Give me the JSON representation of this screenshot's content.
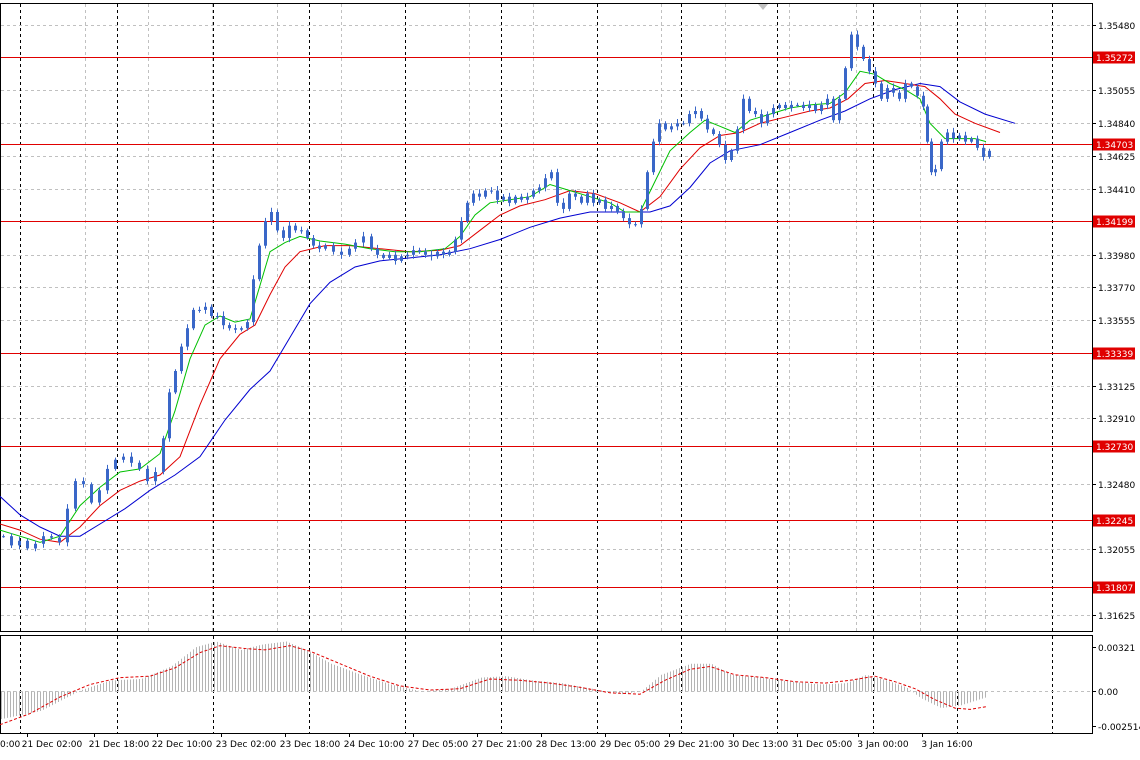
{
  "chart_data": {
    "type": "candlestick",
    "colors": {
      "background": "#ffffff",
      "grid": "#c0c0c0",
      "candle": "#3a67c8",
      "ma_fast": "#00c000",
      "ma_mid": "#e00000",
      "ma_slow": "#0000d0",
      "level_line": "#e00000",
      "level_label_bg": "#e00000",
      "level_label_text": "#ffffff",
      "histogram": "#b4b4b4",
      "signal": "#e00000"
    },
    "price_axis": {
      "ylim": [
        1.3152,
        1.3562
      ],
      "ticks": [
        "1.35480",
        "1.35055",
        "1.34840",
        "1.34625",
        "1.34410",
        "1.33980",
        "1.33770",
        "1.33555",
        "1.33125",
        "1.32910",
        "1.32480",
        "1.32055",
        "1.31625"
      ]
    },
    "levels": [
      "1.35272",
      "1.34703",
      "1.34199",
      "1.33339",
      "1.32730",
      "1.32245",
      "1.31807"
    ],
    "time_labels": [
      "21 Dec 02:00",
      "21 Dec 18:00",
      "22 Dec 10:00",
      "23 Dec 02:00",
      "23 Dec 18:00",
      "24 Dec 10:00",
      "27 Dec 05:00",
      "27 Dec 21:00",
      "28 Dec 13:00",
      "29 Dec 05:00",
      "29 Dec 21:00",
      "30 Dec 13:00",
      "31 Dec 05:00",
      "3 Jan 00:00",
      "3 Jan 16:00"
    ],
    "time_label_partial": "0:00",
    "series_close": [
      [
        0,
        1.3214
      ],
      [
        8,
        1.3208
      ],
      [
        16,
        1.3211
      ],
      [
        24,
        1.3206
      ],
      [
        32,
        1.3209
      ],
      [
        40,
        1.3214
      ],
      [
        48,
        1.3213
      ],
      [
        56,
        1.321
      ],
      [
        64,
        1.3232
      ],
      [
        72,
        1.325
      ],
      [
        80,
        1.3248
      ],
      [
        88,
        1.3236
      ],
      [
        96,
        1.3244
      ],
      [
        104,
        1.3258
      ],
      [
        112,
        1.3264
      ],
      [
        120,
        1.3266
      ],
      [
        128,
        1.3262
      ],
      [
        136,
        1.3258
      ],
      [
        144,
        1.325
      ],
      [
        152,
        1.3256
      ],
      [
        160,
        1.3278
      ],
      [
        166,
        1.3308
      ],
      [
        172,
        1.3322
      ],
      [
        178,
        1.3338
      ],
      [
        184,
        1.335
      ],
      [
        190,
        1.3362
      ],
      [
        196,
        1.3362
      ],
      [
        202,
        1.3364
      ],
      [
        208,
        1.3358
      ],
      [
        214,
        1.3358
      ],
      [
        220,
        1.3352
      ],
      [
        226,
        1.335
      ],
      [
        232,
        1.3349
      ],
      [
        238,
        1.335
      ],
      [
        244,
        1.3354
      ],
      [
        250,
        1.3382
      ],
      [
        256,
        1.3404
      ],
      [
        262,
        1.342
      ],
      [
        268,
        1.3426
      ],
      [
        274,
        1.3414
      ],
      [
        280,
        1.3409
      ],
      [
        286,
        1.3417
      ],
      [
        292,
        1.3414
      ],
      [
        298,
        1.3414
      ],
      [
        304,
        1.3409
      ],
      [
        310,
        1.3404
      ],
      [
        316,
        1.3402
      ],
      [
        322,
        1.3404
      ],
      [
        330,
        1.34
      ],
      [
        338,
        1.3398
      ],
      [
        346,
        1.3402
      ],
      [
        352,
        1.3406
      ],
      [
        360,
        1.341
      ],
      [
        368,
        1.3402
      ],
      [
        374,
        1.3398
      ],
      [
        380,
        1.3396
      ],
      [
        386,
        1.3398
      ],
      [
        392,
        1.3394
      ],
      [
        398,
        1.3397
      ],
      [
        404,
        1.3398
      ],
      [
        410,
        1.3401
      ],
      [
        416,
        1.34
      ],
      [
        422,
        1.3398
      ],
      [
        428,
        1.3397
      ],
      [
        434,
        1.34
      ],
      [
        440,
        1.3398
      ],
      [
        446,
        1.34
      ],
      [
        452,
        1.3408
      ],
      [
        458,
        1.342
      ],
      [
        464,
        1.3432
      ],
      [
        470,
        1.3438
      ],
      [
        476,
        1.3436
      ],
      [
        482,
        1.344
      ],
      [
        488,
        1.344
      ],
      [
        494,
        1.3434
      ],
      [
        500,
        1.3436
      ],
      [
        506,
        1.3432
      ],
      [
        512,
        1.3436
      ],
      [
        518,
        1.3434
      ],
      [
        524,
        1.3436
      ],
      [
        530,
        1.344
      ],
      [
        536,
        1.3442
      ],
      [
        542,
        1.3448
      ],
      [
        548,
        1.3452
      ],
      [
        554,
        1.3432
      ],
      [
        560,
        1.3428
      ],
      [
        566,
        1.3438
      ],
      [
        572,
        1.3436
      ],
      [
        578,
        1.3432
      ],
      [
        584,
        1.3438
      ],
      [
        590,
        1.3432
      ],
      [
        596,
        1.3434
      ],
      [
        602,
        1.3428
      ],
      [
        608,
        1.343
      ],
      [
        614,
        1.3426
      ],
      [
        620,
        1.3422
      ],
      [
        626,
        1.3418
      ],
      [
        632,
        1.3418
      ],
      [
        638,
        1.3428
      ],
      [
        644,
        1.3452
      ],
      [
        650,
        1.3472
      ],
      [
        656,
        1.3484
      ],
      [
        662,
        1.348
      ],
      [
        668,
        1.3482
      ],
      [
        674,
        1.3484
      ],
      [
        680,
        1.3484
      ],
      [
        686,
        1.349
      ],
      [
        692,
        1.3492
      ],
      [
        698,
        1.3487
      ],
      [
        704,
        1.348
      ],
      [
        710,
        1.3477
      ],
      [
        716,
        1.347
      ],
      [
        722,
        1.346
      ],
      [
        728,
        1.3466
      ],
      [
        734,
        1.348
      ],
      [
        740,
        1.35
      ],
      [
        746,
        1.3492
      ],
      [
        752,
        1.349
      ],
      [
        758,
        1.3484
      ],
      [
        764,
        1.349
      ],
      [
        770,
        1.3494
      ],
      [
        776,
        1.3496
      ],
      [
        782,
        1.3494
      ],
      [
        788,
        1.3496
      ],
      [
        794,
        1.3496
      ],
      [
        800,
        1.3494
      ],
      [
        806,
        1.3496
      ],
      [
        812,
        1.3492
      ],
      [
        818,
        1.3496
      ],
      [
        824,
        1.35
      ],
      [
        830,
        1.3486
      ],
      [
        836,
        1.35
      ],
      [
        842,
        1.352
      ],
      [
        848,
        1.3542
      ],
      [
        854,
        1.3534
      ],
      [
        860,
        1.3526
      ],
      [
        866,
        1.3518
      ],
      [
        872,
        1.351
      ],
      [
        878,
        1.35
      ],
      [
        884,
        1.3507
      ],
      [
        890,
        1.3504
      ],
      [
        896,
        1.35
      ],
      [
        902,
        1.351
      ],
      [
        908,
        1.3508
      ],
      [
        914,
        1.3502
      ],
      [
        920,
        1.3495
      ],
      [
        924,
        1.3472
      ],
      [
        928,
        1.3452
      ],
      [
        932,
        1.3454
      ],
      [
        938,
        1.3472
      ],
      [
        944,
        1.3478
      ],
      [
        950,
        1.3474
      ],
      [
        956,
        1.3476
      ],
      [
        962,
        1.3472
      ],
      [
        968,
        1.3474
      ],
      [
        974,
        1.3468
      ],
      [
        980,
        1.3462
      ],
      [
        986,
        1.3466
      ]
    ],
    "ma_fast_points": [
      [
        0,
        1.3218
      ],
      [
        20,
        1.3214
      ],
      [
        40,
        1.321
      ],
      [
        60,
        1.3214
      ],
      [
        80,
        1.3234
      ],
      [
        100,
        1.3246
      ],
      [
        120,
        1.3256
      ],
      [
        140,
        1.3258
      ],
      [
        160,
        1.3268
      ],
      [
        175,
        1.3296
      ],
      [
        190,
        1.333
      ],
      [
        205,
        1.3352
      ],
      [
        220,
        1.3358
      ],
      [
        235,
        1.3354
      ],
      [
        250,
        1.3356
      ],
      [
        260,
        1.3378
      ],
      [
        270,
        1.34
      ],
      [
        285,
        1.3406
      ],
      [
        300,
        1.341
      ],
      [
        320,
        1.3407
      ],
      [
        345,
        1.3405
      ],
      [
        370,
        1.3402
      ],
      [
        395,
        1.34
      ],
      [
        420,
        1.34
      ],
      [
        445,
        1.3402
      ],
      [
        460,
        1.341
      ],
      [
        475,
        1.3424
      ],
      [
        490,
        1.3432
      ],
      [
        510,
        1.3434
      ],
      [
        530,
        1.3436
      ],
      [
        550,
        1.3444
      ],
      [
        570,
        1.344
      ],
      [
        590,
        1.3436
      ],
      [
        610,
        1.3432
      ],
      [
        625,
        1.3426
      ],
      [
        640,
        1.3426
      ],
      [
        655,
        1.3446
      ],
      [
        670,
        1.3466
      ],
      [
        690,
        1.3478
      ],
      [
        705,
        1.3486
      ],
      [
        720,
        1.3482
      ],
      [
        735,
        1.3478
      ],
      [
        750,
        1.3486
      ],
      [
        770,
        1.349
      ],
      [
        790,
        1.3494
      ],
      [
        810,
        1.3496
      ],
      [
        830,
        1.3497
      ],
      [
        845,
        1.3504
      ],
      [
        860,
        1.3518
      ],
      [
        875,
        1.3516
      ],
      [
        890,
        1.351
      ],
      [
        905,
        1.3506
      ],
      [
        920,
        1.35
      ],
      [
        930,
        1.3484
      ],
      [
        945,
        1.3474
      ],
      [
        960,
        1.3474
      ],
      [
        975,
        1.3474
      ],
      [
        986,
        1.3472
      ]
    ],
    "ma_mid_points": [
      [
        0,
        1.3222
      ],
      [
        20,
        1.3218
      ],
      [
        40,
        1.3212
      ],
      [
        60,
        1.321
      ],
      [
        80,
        1.322
      ],
      [
        100,
        1.3234
      ],
      [
        120,
        1.3244
      ],
      [
        140,
        1.325
      ],
      [
        160,
        1.3254
      ],
      [
        180,
        1.3266
      ],
      [
        200,
        1.33
      ],
      [
        220,
        1.333
      ],
      [
        240,
        1.3346
      ],
      [
        255,
        1.3352
      ],
      [
        270,
        1.3372
      ],
      [
        285,
        1.339
      ],
      [
        300,
        1.34
      ],
      [
        325,
        1.3404
      ],
      [
        350,
        1.3404
      ],
      [
        380,
        1.3402
      ],
      [
        410,
        1.34
      ],
      [
        440,
        1.3401
      ],
      [
        460,
        1.3404
      ],
      [
        480,
        1.3414
      ],
      [
        500,
        1.3424
      ],
      [
        520,
        1.343
      ],
      [
        545,
        1.3434
      ],
      [
        570,
        1.344
      ],
      [
        595,
        1.3438
      ],
      [
        620,
        1.3432
      ],
      [
        640,
        1.3426
      ],
      [
        660,
        1.3436
      ],
      [
        680,
        1.3454
      ],
      [
        700,
        1.3468
      ],
      [
        720,
        1.3476
      ],
      [
        740,
        1.3478
      ],
      [
        760,
        1.3484
      ],
      [
        785,
        1.3488
      ],
      [
        810,
        1.3492
      ],
      [
        830,
        1.3494
      ],
      [
        848,
        1.35
      ],
      [
        865,
        1.351
      ],
      [
        885,
        1.3512
      ],
      [
        905,
        1.351
      ],
      [
        925,
        1.3508
      ],
      [
        940,
        1.35
      ],
      [
        955,
        1.349
      ],
      [
        975,
        1.3484
      ],
      [
        1000,
        1.3478
      ]
    ],
    "ma_slow_points": [
      [
        0,
        1.324
      ],
      [
        20,
        1.3228
      ],
      [
        40,
        1.322
      ],
      [
        60,
        1.3214
      ],
      [
        80,
        1.3214
      ],
      [
        100,
        1.3222
      ],
      [
        125,
        1.3232
      ],
      [
        150,
        1.3244
      ],
      [
        175,
        1.3254
      ],
      [
        200,
        1.3266
      ],
      [
        225,
        1.329
      ],
      [
        250,
        1.331
      ],
      [
        270,
        1.3322
      ],
      [
        290,
        1.3344
      ],
      [
        310,
        1.3366
      ],
      [
        330,
        1.338
      ],
      [
        355,
        1.339
      ],
      [
        380,
        1.3394
      ],
      [
        410,
        1.3396
      ],
      [
        440,
        1.3398
      ],
      [
        470,
        1.3402
      ],
      [
        500,
        1.3408
      ],
      [
        530,
        1.3416
      ],
      [
        560,
        1.3422
      ],
      [
        590,
        1.3426
      ],
      [
        620,
        1.3426
      ],
      [
        650,
        1.3426
      ],
      [
        670,
        1.343
      ],
      [
        690,
        1.3442
      ],
      [
        710,
        1.3458
      ],
      [
        730,
        1.3466
      ],
      [
        760,
        1.347
      ],
      [
        790,
        1.3478
      ],
      [
        820,
        1.3486
      ],
      [
        845,
        1.3492
      ],
      [
        870,
        1.35
      ],
      [
        895,
        1.3506
      ],
      [
        920,
        1.351
      ],
      [
        940,
        1.3508
      ],
      [
        960,
        1.3498
      ],
      [
        985,
        1.349
      ],
      [
        1015,
        1.3484
      ]
    ],
    "oscillator": {
      "ylim": [
        -0.003,
        0.004
      ],
      "ticks": [
        "0.00321",
        "0.00",
        "-0.002514"
      ],
      "histogram": [
        [
          0,
          -0.002
        ],
        [
          40,
          -0.0014
        ],
        [
          80,
          0.0001
        ],
        [
          110,
          0.0008
        ],
        [
          140,
          0.0009
        ],
        [
          170,
          0.0018
        ],
        [
          195,
          0.0032
        ],
        [
          215,
          0.0036
        ],
        [
          240,
          0.003
        ],
        [
          262,
          0.0034
        ],
        [
          285,
          0.0036
        ],
        [
          305,
          0.003
        ],
        [
          330,
          0.002
        ],
        [
          360,
          0.0012
        ],
        [
          390,
          0.0005
        ],
        [
          420,
          0.0
        ],
        [
          450,
          0.0002
        ],
        [
          480,
          0.001
        ],
        [
          505,
          0.0011
        ],
        [
          530,
          0.0008
        ],
        [
          560,
          0.0006
        ],
        [
          590,
          0.0002
        ],
        [
          620,
          -0.0002
        ],
        [
          640,
          0.0
        ],
        [
          660,
          0.0012
        ],
        [
          690,
          0.002
        ],
        [
          710,
          0.002
        ],
        [
          730,
          0.0012
        ],
        [
          760,
          0.001
        ],
        [
          790,
          0.0007
        ],
        [
          820,
          0.0005
        ],
        [
          845,
          0.0006
        ],
        [
          865,
          0.0012
        ],
        [
          885,
          0.0008
        ],
        [
          905,
          0.0003
        ],
        [
          920,
          -0.0005
        ],
        [
          940,
          -0.0012
        ],
        [
          960,
          -0.001
        ],
        [
          986,
          -0.0004
        ]
      ],
      "signal": [
        [
          0,
          -0.0024
        ],
        [
          30,
          -0.0016
        ],
        [
          60,
          -0.0004
        ],
        [
          90,
          0.0005
        ],
        [
          120,
          0.001
        ],
        [
          150,
          0.0011
        ],
        [
          175,
          0.0017
        ],
        [
          200,
          0.0028
        ],
        [
          220,
          0.0033
        ],
        [
          245,
          0.0031
        ],
        [
          265,
          0.003
        ],
        [
          290,
          0.0033
        ],
        [
          310,
          0.0029
        ],
        [
          340,
          0.002
        ],
        [
          370,
          0.0011
        ],
        [
          400,
          0.0004
        ],
        [
          430,
          0.0001
        ],
        [
          460,
          0.0002
        ],
        [
          490,
          0.0009
        ],
        [
          520,
          0.0008
        ],
        [
          550,
          0.0006
        ],
        [
          580,
          0.0003
        ],
        [
          610,
          -0.0001
        ],
        [
          640,
          -0.0002
        ],
        [
          665,
          0.0008
        ],
        [
          690,
          0.0016
        ],
        [
          710,
          0.0018
        ],
        [
          735,
          0.0012
        ],
        [
          765,
          0.001
        ],
        [
          795,
          0.0007
        ],
        [
          825,
          0.0006
        ],
        [
          850,
          0.0008
        ],
        [
          875,
          0.0011
        ],
        [
          895,
          0.0007
        ],
        [
          915,
          0.0002
        ],
        [
          935,
          -0.0006
        ],
        [
          955,
          -0.0012
        ],
        [
          970,
          -0.0013
        ],
        [
          986,
          -0.0011
        ]
      ]
    }
  }
}
